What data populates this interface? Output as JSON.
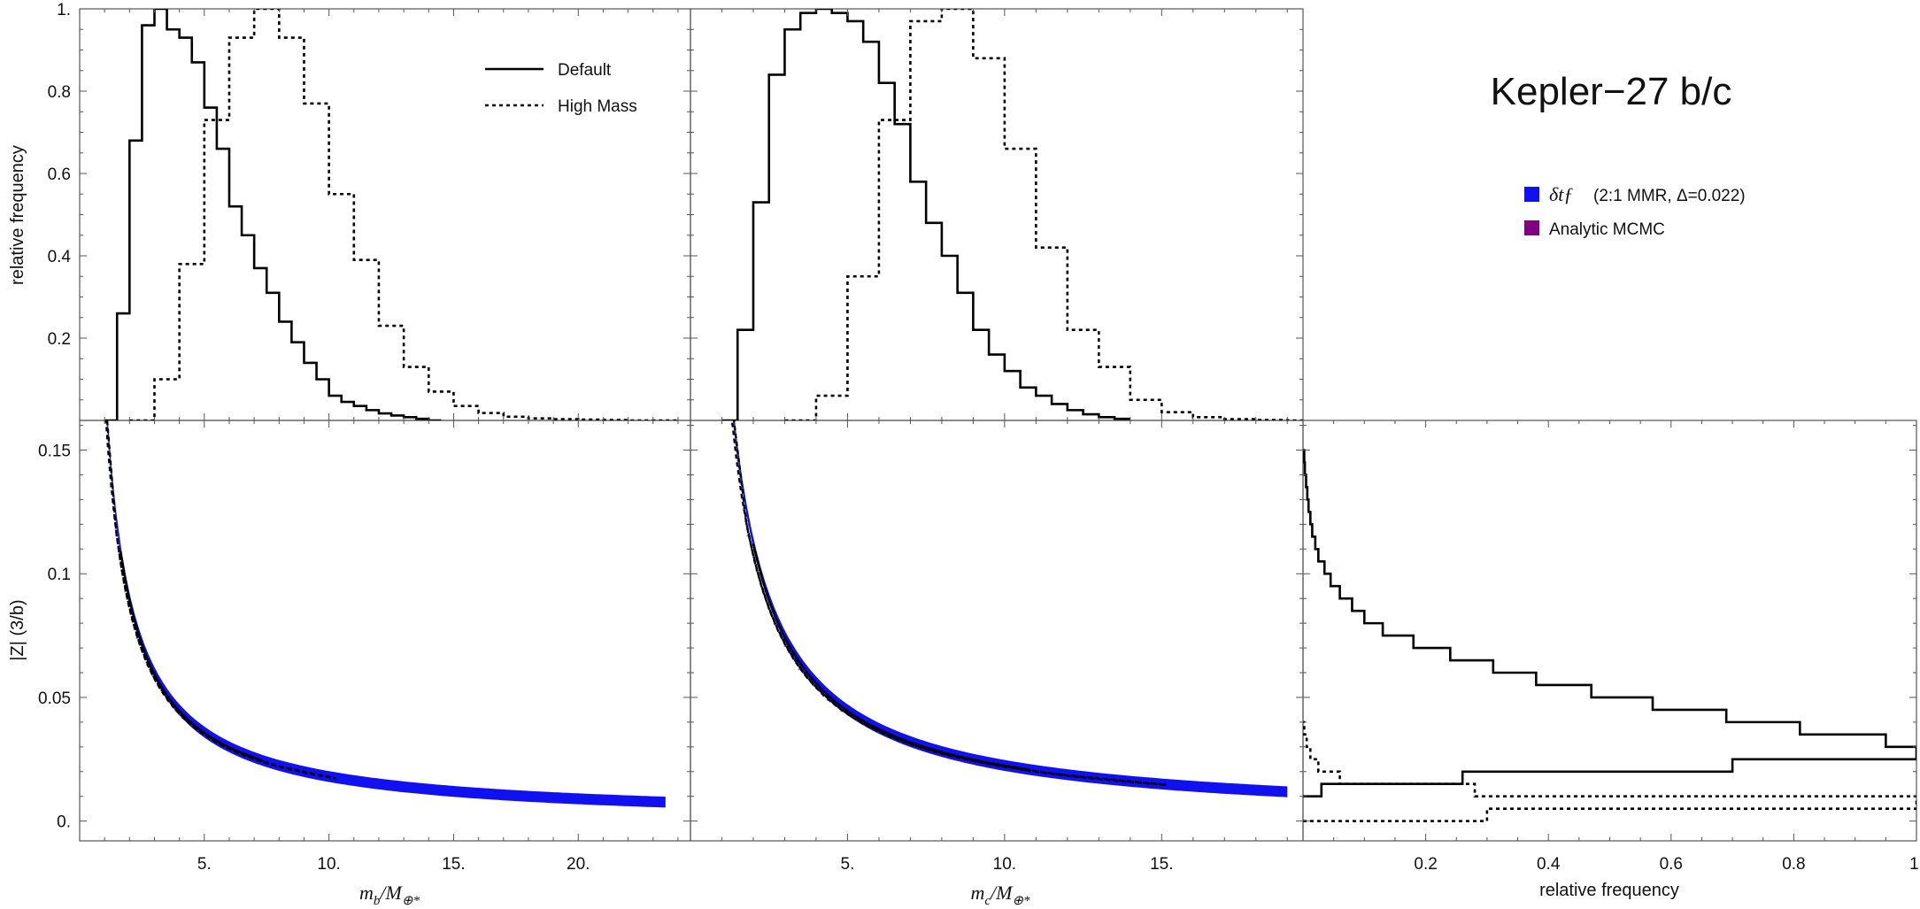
{
  "title": "Kepler−27 b/c",
  "colors": {
    "ttv": "#1010f0",
    "mcmc": "#800080",
    "gray": "#8a8a8a",
    "line": "#000000"
  },
  "legend_top": [
    {
      "label": "Default",
      "style": "solid"
    },
    {
      "label": "High Mass",
      "style": "dotted"
    }
  ],
  "legend_right": [
    {
      "label": "(2:1 MMR, Δ=0.022)",
      "prefix": "δtƒ",
      "color": "#1010f0"
    },
    {
      "label": "Analytic MCMC",
      "color": "#800080"
    }
  ],
  "chart_data": [
    {
      "type": "histogram",
      "id": "mb-hist",
      "ylabel": "relative frequency",
      "xlim": [
        0,
        24.5
      ],
      "ylim": [
        0,
        1.0
      ],
      "yticks": [
        0.2,
        0.4,
        0.6,
        0.8,
        1.0
      ],
      "ytick_labels": [
        "0.2",
        "0.4",
        "0.6",
        "0.8",
        "1."
      ],
      "series": [
        {
          "name": "Default",
          "style": "solid",
          "edges": [
            1,
            1.5,
            2,
            2.5,
            3,
            3.5,
            4,
            4.5,
            5,
            5.5,
            6,
            6.5,
            7,
            7.5,
            8,
            8.5,
            9,
            9.5,
            10,
            10.5,
            11,
            11.5,
            12,
            12.5,
            13,
            13.5,
            14,
            14.5
          ],
          "values": [
            0.0,
            0.26,
            0.68,
            0.96,
            1.0,
            0.95,
            0.93,
            0.87,
            0.76,
            0.66,
            0.52,
            0.45,
            0.37,
            0.31,
            0.24,
            0.19,
            0.14,
            0.1,
            0.06,
            0.045,
            0.035,
            0.025,
            0.017,
            0.012,
            0.008,
            0.004,
            0.0
          ]
        },
        {
          "name": "High Mass",
          "style": "dotted",
          "edges": [
            2,
            3,
            4,
            5,
            6,
            7,
            8,
            9,
            10,
            11,
            12,
            13,
            14,
            15,
            16,
            17,
            18,
            19,
            20,
            21,
            22,
            23,
            24
          ],
          "values": [
            0.0,
            0.1,
            0.38,
            0.73,
            0.93,
            1.0,
            0.93,
            0.77,
            0.55,
            0.39,
            0.23,
            0.13,
            0.07,
            0.035,
            0.018,
            0.009,
            0.005,
            0.003,
            0.002,
            0.001,
            0.0,
            0.0
          ]
        }
      ]
    },
    {
      "type": "histogram",
      "id": "mc-hist",
      "xlim": [
        0,
        19.5
      ],
      "ylim": [
        0,
        1.0
      ],
      "series": [
        {
          "name": "Default",
          "style": "solid",
          "edges": [
            1,
            1.5,
            2,
            2.5,
            3,
            3.5,
            4,
            4.5,
            5,
            5.5,
            6,
            6.5,
            7,
            7.5,
            8,
            8.5,
            9,
            9.5,
            10,
            10.5,
            11,
            11.5,
            12,
            12.5,
            13,
            13.5,
            14
          ],
          "values": [
            0.0,
            0.22,
            0.53,
            0.84,
            0.95,
            0.99,
            1.0,
            0.99,
            0.97,
            0.92,
            0.82,
            0.72,
            0.58,
            0.48,
            0.4,
            0.31,
            0.22,
            0.16,
            0.12,
            0.08,
            0.06,
            0.04,
            0.025,
            0.015,
            0.008,
            0.004
          ]
        },
        {
          "name": "High Mass",
          "style": "dotted",
          "edges": [
            3,
            4,
            5,
            6,
            7,
            8,
            9,
            10,
            11,
            12,
            13,
            14,
            15,
            16,
            17,
            18,
            19,
            20
          ],
          "values": [
            0.0,
            0.06,
            0.35,
            0.73,
            0.97,
            1.0,
            0.88,
            0.66,
            0.42,
            0.22,
            0.13,
            0.05,
            0.02,
            0.008,
            0.003,
            0.001,
            0.0
          ]
        }
      ]
    },
    {
      "type": "scatter",
      "id": "mb-z",
      "xlabel": "m_b/M_earth",
      "ylabel": "|Z| (3/b)",
      "xlim": [
        0,
        24.5
      ],
      "ylim": [
        -0.008,
        0.162
      ],
      "xticks": [
        5,
        10,
        15,
        20
      ],
      "xtick_labels": [
        "5.",
        "10.",
        "15.",
        "20."
      ],
      "yticks": [
        0.0,
        0.05,
        0.1,
        0.15
      ],
      "ytick_labels": [
        "0.",
        "0.05",
        "0.1",
        "0.15"
      ],
      "relation": "|Z| = 0.18 / m",
      "ttv_band_x": [
        1.1,
        23.5
      ],
      "mcmc_band_x": [
        1.15,
        4.8
      ],
      "contours": [
        "inner-solid",
        "outer-dotted"
      ]
    },
    {
      "type": "scatter",
      "id": "mc-z",
      "xlabel": "m_c/M_earth",
      "xlim": [
        0,
        19.5
      ],
      "ylim": [
        -0.008,
        0.162
      ],
      "xticks": [
        5,
        10,
        15
      ],
      "xtick_labels": [
        "5.",
        "10.",
        "15."
      ],
      "relation": "|Z| = 0.225 / m",
      "ttv_band_x": [
        1.35,
        19.0
      ],
      "mcmc_band_x": [
        1.4,
        6.6
      ],
      "contours": [
        "inner-solid",
        "outer-dotted"
      ]
    },
    {
      "type": "histogram-horizontal",
      "id": "z-hist",
      "xlabel": "relative frequency",
      "xlim": [
        0,
        1.0
      ],
      "ylim": [
        -0.008,
        0.162
      ],
      "xticks": [
        0.2,
        0.4,
        0.6,
        0.8,
        1.0
      ],
      "xtick_labels": [
        "0.2",
        "0.4",
        "0.6",
        "0.8",
        "1."
      ],
      "series": [
        {
          "name": "Default",
          "style": "solid",
          "edges": [
            0.01,
            0.015,
            0.02,
            0.025,
            0.03,
            0.035,
            0.04,
            0.045,
            0.05,
            0.055,
            0.06,
            0.065,
            0.07,
            0.075,
            0.08,
            0.085,
            0.09,
            0.095,
            0.1,
            0.105,
            0.11,
            0.115,
            0.12,
            0.125,
            0.13,
            0.135,
            0.14,
            0.145,
            0.15
          ],
          "values": [
            0.03,
            0.26,
            0.7,
            1.0,
            0.95,
            0.81,
            0.69,
            0.57,
            0.47,
            0.38,
            0.31,
            0.24,
            0.18,
            0.13,
            0.1,
            0.08,
            0.06,
            0.045,
            0.035,
            0.025,
            0.02,
            0.015,
            0.012,
            0.009,
            0.007,
            0.005,
            0.003,
            0.002
          ]
        },
        {
          "name": "High Mass",
          "style": "dotted",
          "edges": [
            0.0,
            0.005,
            0.01,
            0.015,
            0.02,
            0.025,
            0.03,
            0.035,
            0.04
          ],
          "values": [
            0.3,
            1.0,
            0.28,
            0.06,
            0.025,
            0.012,
            0.006,
            0.002
          ]
        }
      ]
    }
  ]
}
